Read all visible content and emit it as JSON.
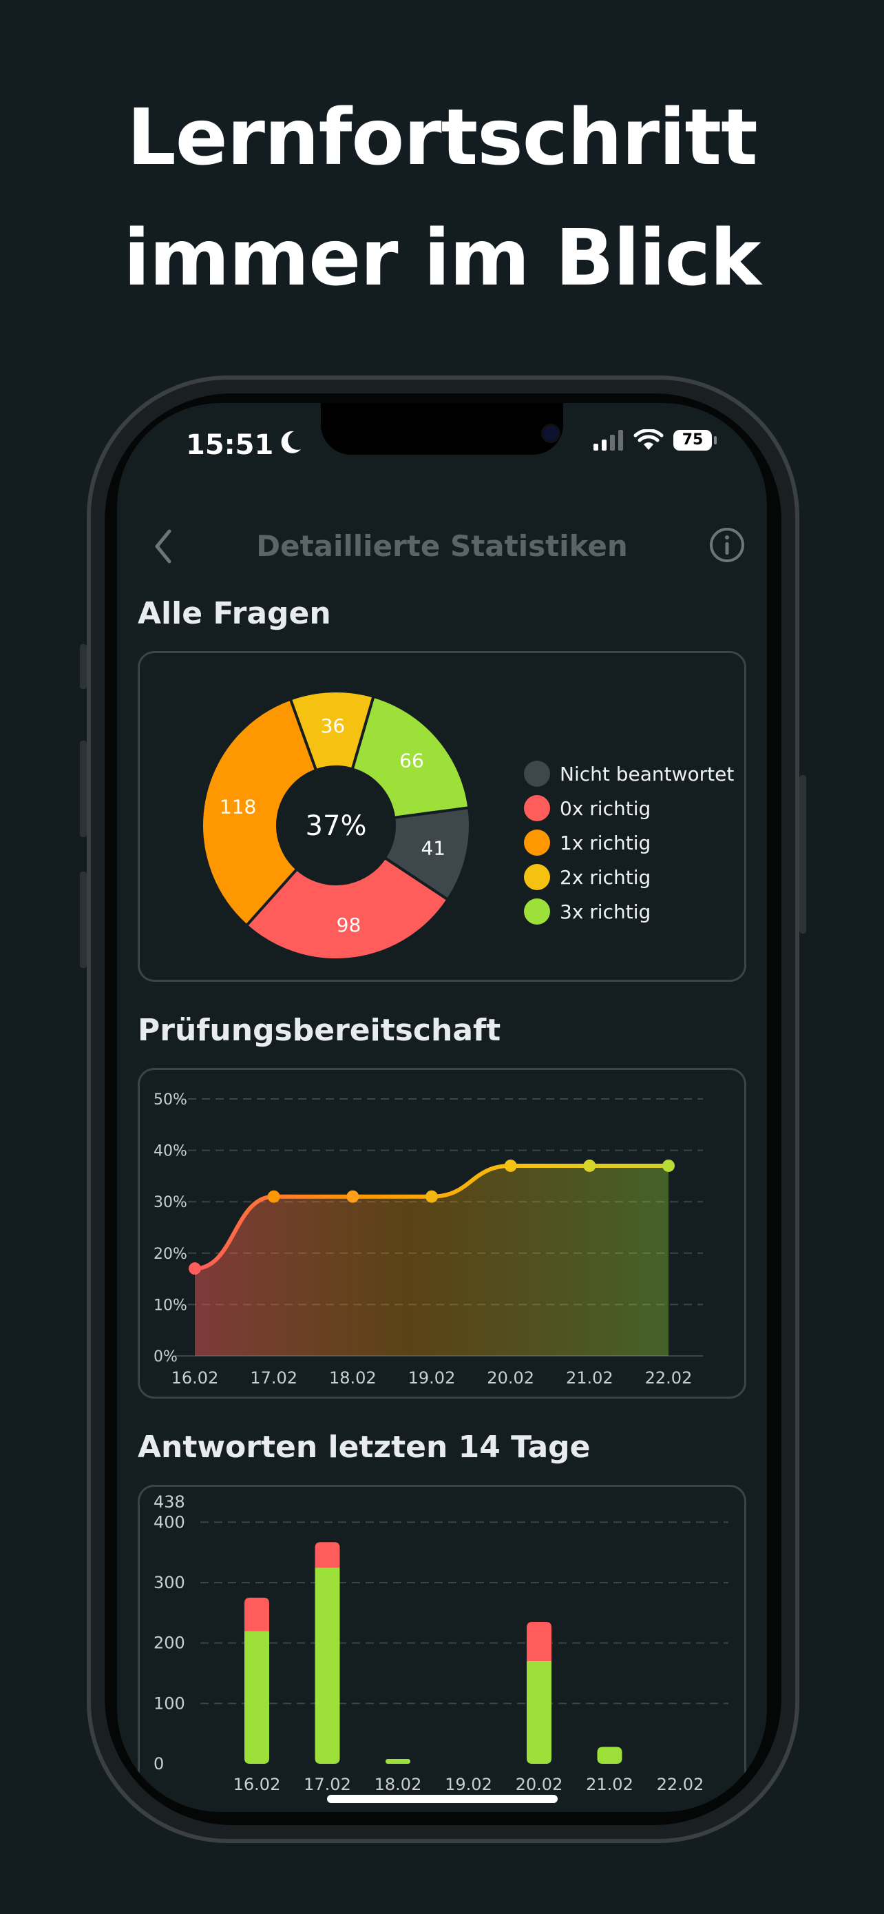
{
  "headline": {
    "line1": "Lernfortschritt",
    "line2": "immer im Blick"
  },
  "status_bar": {
    "time": "15:51",
    "battery": "75"
  },
  "nav": {
    "title": "Detaillierte Statistiken"
  },
  "sections": {
    "all_questions": "Alle Fragen",
    "readiness": "Prüfungsbereitschaft",
    "answers": "Antworten letzten 14 Tage"
  },
  "colors": {
    "background": "#131d21",
    "not_answered": "#3d474c",
    "zero_correct": "#ff5c5c",
    "one_correct": "#ff9800",
    "two_correct": "#f5c211",
    "three_correct": "#9de03a"
  },
  "chart_data": [
    {
      "type": "pie",
      "center_label": "37%",
      "slices": [
        {
          "label": "Nicht beantwortet",
          "value": 41,
          "color": "#3d474c"
        },
        {
          "label": "0x richtig",
          "value": 98,
          "color": "#ff5c5c"
        },
        {
          "label": "1x richtig",
          "value": 118,
          "color": "#ff9800"
        },
        {
          "label": "2x richtig",
          "value": 36,
          "color": "#f5c211"
        },
        {
          "label": "3x richtig",
          "value": 66,
          "color": "#9de03a"
        }
      ]
    },
    {
      "type": "area",
      "categories": [
        "16.02",
        "17.02",
        "18.02",
        "19.02",
        "20.02",
        "21.02",
        "22.02"
      ],
      "values": [
        17,
        31,
        31,
        31,
        37,
        37,
        37
      ],
      "yticks": [
        "0%",
        "10%",
        "20%",
        "30%",
        "40%",
        "50%"
      ],
      "ylim": [
        0,
        50
      ],
      "grid": true
    },
    {
      "type": "bar",
      "stacked": true,
      "categories": [
        "16.02",
        "17.02",
        "18.02",
        "19.02",
        "20.02",
        "21.02",
        "22.02"
      ],
      "series": [
        {
          "color": "#9de03a",
          "values": [
            220,
            325,
            8,
            0,
            170,
            28,
            0
          ]
        },
        {
          "color": "#ff5c5c",
          "values": [
            55,
            42,
            0,
            0,
            65,
            0,
            0
          ]
        }
      ],
      "yticks": [
        "0",
        "100",
        "200",
        "300",
        "400"
      ],
      "ymax_label": "438",
      "ylim": [
        0,
        438
      ],
      "grid": true
    }
  ]
}
